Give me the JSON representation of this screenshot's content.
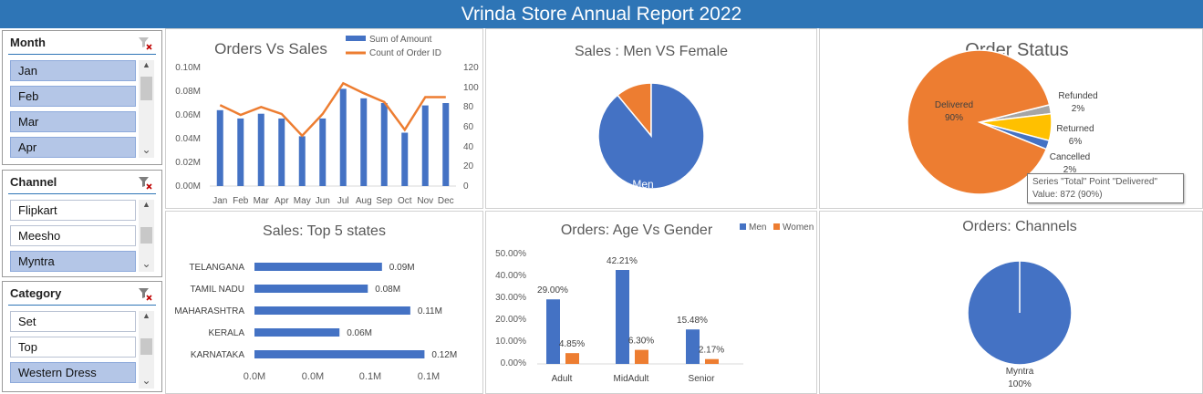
{
  "title": "Vrinda Store Annual Report 2022",
  "colors": {
    "banner": "#2e75b6",
    "blue": "#4472c4",
    "orange": "#ed7d31",
    "gray": "#a5a5a5",
    "gold": "#ffc000",
    "selected": "#b4c6e7"
  },
  "slicers": {
    "month": {
      "title": "Month",
      "items": [
        "Jan",
        "Feb",
        "Mar",
        "Apr"
      ]
    },
    "channel": {
      "title": "Channel",
      "items": [
        "Flipkart",
        "Meesho",
        "Myntra"
      ]
    },
    "category": {
      "title": "Category",
      "items": [
        "Set",
        "Top",
        "Western Dress"
      ]
    }
  },
  "icons": {
    "clear_filter": "filter-clear-icon",
    "scroll_up": "▲",
    "scroll_down": "⌄"
  },
  "tooltip": {
    "line1": "Series \"Total\" Point \"Delivered\"",
    "line2": "Value: 872 (90%)"
  },
  "charts": {
    "orders_vs_sales": {
      "title": "Orders Vs Sales",
      "legend": [
        "Sum of Amount",
        "Count of Order ID"
      ],
      "left_ticks": [
        "0.00M",
        "0.02M",
        "0.04M",
        "0.06M",
        "0.08M",
        "0.10M"
      ],
      "right_ticks": [
        "0",
        "20",
        "40",
        "60",
        "80",
        "100",
        "120"
      ]
    },
    "men_female": {
      "title": "Sales : Men VS Female",
      "label": "Men"
    },
    "order_status": {
      "title": "Order Status"
    },
    "top_states": {
      "title": "Sales: Top 5 states",
      "ticks": [
        "0.0M",
        "0.0M",
        "0.1M",
        "0.1M"
      ]
    },
    "age_gender": {
      "title": "Orders: Age Vs Gender",
      "legend": [
        "Men",
        "Women"
      ],
      "ticks": [
        "0.00%",
        "10.00%",
        "20.00%",
        "30.00%",
        "40.00%",
        "50.00%"
      ]
    },
    "channels": {
      "title": "Orders: Channels"
    }
  },
  "chart_data": [
    {
      "type": "bar",
      "title": "Orders Vs Sales",
      "categories": [
        "Jan",
        "Feb",
        "Mar",
        "Apr",
        "May",
        "Jun",
        "Jul",
        "Aug",
        "Sep",
        "Oct",
        "Nov",
        "Dec"
      ],
      "series": [
        {
          "name": "Sum of Amount",
          "axis": "left",
          "type": "bar",
          "values": [
            0.064,
            0.057,
            0.061,
            0.057,
            0.042,
            0.057,
            0.082,
            0.074,
            0.07,
            0.045,
            0.068,
            0.07
          ]
        },
        {
          "name": "Count of Order ID",
          "axis": "right",
          "type": "line",
          "values": [
            82,
            72,
            80,
            73,
            51,
            73,
            104,
            94,
            85,
            57,
            90,
            90
          ]
        }
      ],
      "ylim": [
        0,
        0.1
      ],
      "y2lim": [
        0,
        120
      ]
    },
    {
      "type": "pie",
      "title": "Sales : Men VS Female",
      "labels": [
        "Men",
        "Women"
      ],
      "values": [
        89,
        11
      ],
      "data_labels": [
        "Men",
        ""
      ]
    },
    {
      "type": "pie",
      "title": "Order Status",
      "labels": [
        "Delivered",
        "Refunded",
        "Returned",
        "Cancelled"
      ],
      "values": [
        90,
        2,
        6,
        2
      ],
      "data_labels": [
        [
          "Delivered",
          "90%"
        ],
        [
          "Refunded",
          "2%"
        ],
        [
          "Returned",
          "6%"
        ],
        [
          "Cancelled",
          "2%"
        ]
      ]
    },
    {
      "type": "bar",
      "orientation": "horizontal",
      "title": "Sales: Top 5 states",
      "categories": [
        "TELANGANA",
        "TAMIL NADU",
        "MAHARASHTRA",
        "KERALA",
        "KARNATAKA"
      ],
      "values": [
        0.09,
        0.08,
        0.11,
        0.06,
        0.12
      ],
      "value_labels": [
        "0.09M",
        "0.08M",
        "0.11M",
        "0.06M",
        "0.12M"
      ],
      "xlim": [
        0,
        0.12
      ]
    },
    {
      "type": "bar",
      "title": "Orders: Age Vs Gender",
      "categories": [
        "Adult",
        "MidAdult",
        "Senior"
      ],
      "series": [
        {
          "name": "Men",
          "values": [
            29.0,
            42.21,
            15.48
          ],
          "labels": [
            "29.00%",
            "42.21%",
            "15.48%"
          ]
        },
        {
          "name": "Women",
          "values": [
            4.85,
            6.3,
            2.17
          ],
          "labels": [
            "4.85%",
            "6.30%",
            "2.17%"
          ]
        }
      ],
      "ylim": [
        0,
        50
      ]
    },
    {
      "type": "pie",
      "title": "Orders: Channels",
      "labels": [
        "Myntra"
      ],
      "values": [
        100
      ],
      "data_labels": [
        [
          "Myntra",
          "100%"
        ]
      ]
    }
  ]
}
